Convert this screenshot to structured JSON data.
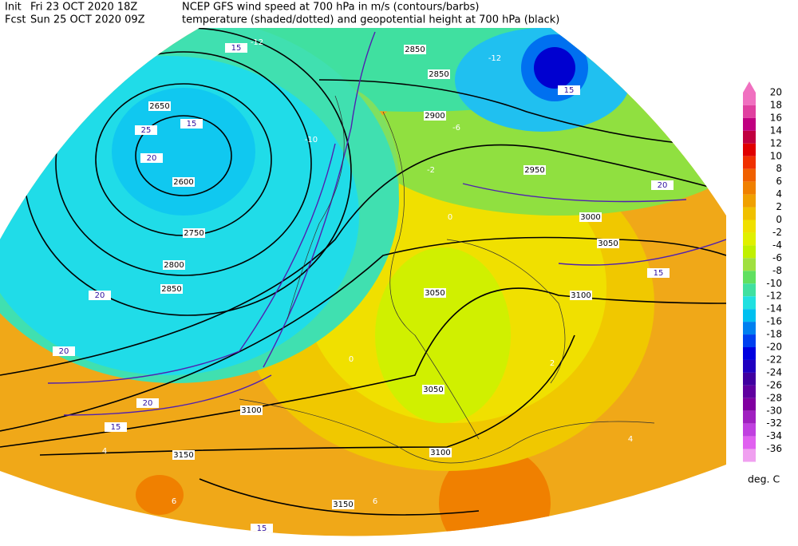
{
  "header": {
    "init_label": "Init",
    "init": "Fri 23 OCT 2020 18Z",
    "fcst_label": "Fcst",
    "fcst": "Sun 25 OCT 2020 09Z",
    "line1": "NCEP GFS wind speed at 700 hPa in m/s (contours/barbs)",
    "line2": "temperature (shaded/dotted) and geopotential height at 700 hPa (black)"
  },
  "colorbar": {
    "unit": "deg. C",
    "levels": [
      {
        "value": 20,
        "color": "#f070c0"
      },
      {
        "value": 18,
        "color": "#e040a0"
      },
      {
        "value": 16,
        "color": "#c00080"
      },
      {
        "value": 14,
        "color": "#c00040"
      },
      {
        "value": 12,
        "color": "#e00000"
      },
      {
        "value": 10,
        "color": "#f03000"
      },
      {
        "value": 8,
        "color": "#f06000"
      },
      {
        "value": 6,
        "color": "#f08000"
      },
      {
        "value": 4,
        "color": "#f0a000"
      },
      {
        "value": 2,
        "color": "#f0c000"
      },
      {
        "value": 0,
        "color": "#f0e000"
      },
      {
        "value": -2,
        "color": "#e0f000"
      },
      {
        "value": -4,
        "color": "#c0f000"
      },
      {
        "value": -6,
        "color": "#a0e040"
      },
      {
        "value": -8,
        "color": "#60e060"
      },
      {
        "value": -10,
        "color": "#40e0a0"
      },
      {
        "value": -12,
        "color": "#20e0e0"
      },
      {
        "value": -14,
        "color": "#00c0f0"
      },
      {
        "value": -16,
        "color": "#0080f0"
      },
      {
        "value": -18,
        "color": "#0040f0"
      },
      {
        "value": -20,
        "color": "#0000e0"
      },
      {
        "value": -22,
        "color": "#2000c0"
      },
      {
        "value": -24,
        "color": "#4000a0"
      },
      {
        "value": -26,
        "color": "#6000a0"
      },
      {
        "value": -28,
        "color": "#8000a0"
      },
      {
        "value": -30,
        "color": "#a020c0"
      },
      {
        "value": -32,
        "color": "#c040e0"
      },
      {
        "value": -34,
        "color": "#e060f0"
      },
      {
        "value": -36,
        "color": "#f0a0f0"
      }
    ]
  },
  "map": {
    "height_labels": [
      2850,
      2850,
      2900,
      2950,
      3050,
      3100,
      3050,
      3100,
      3150,
      3100,
      3150,
      2650,
      2600,
      2750,
      2800,
      2850,
      3050,
      3000
    ],
    "wind_labels": [
      25,
      20,
      15,
      15,
      15,
      20,
      15,
      15,
      15,
      20,
      20,
      20
    ],
    "temperature_labels": [
      -12,
      -12,
      -10,
      -6,
      -2,
      0,
      0,
      2,
      4,
      6,
      4,
      6
    ]
  }
}
